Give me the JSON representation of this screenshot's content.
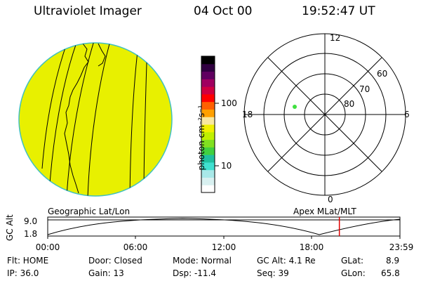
{
  "header": {
    "instrument": "Ultraviolet Imager",
    "date": "04 Oct 00",
    "time": "19:52:47 UT"
  },
  "colorbar": {
    "unit_label": "photon cm⁻²s⁻¹",
    "tick_100": "100",
    "tick_10": "10",
    "colors": [
      "#ffffff",
      "#d8f0f0",
      "#a8e8e8",
      "#40e0d0",
      "#20c0a0",
      "#40d040",
      "#80e020",
      "#c0f000",
      "#f0f000",
      "#f8e8a0",
      "#ffa000",
      "#ff6000",
      "#ff0000",
      "#d00040",
      "#a00060",
      "#600060",
      "#300040",
      "#000000"
    ]
  },
  "polar_plot": {
    "label_12": "12",
    "label_18": "18",
    "label_6": "6",
    "label_0": "0",
    "label_60": "60",
    "label_70": "70",
    "label_80": "80"
  },
  "geo_view": {
    "disk_color": "#e8f000",
    "limb_color": "#40c0c0"
  },
  "timeline": {
    "ylabel": "GC Alt",
    "y_top": "9.0",
    "y_bottom": "1.8",
    "left_title": "Geographic Lat/Lon",
    "right_title": "Apex MLat/MLT",
    "ticks": [
      "00:00",
      "06:00",
      "12:00",
      "18:00",
      "23:59"
    ],
    "marker_color": "#e00000",
    "marker_time_fraction": 0.828
  },
  "info": {
    "flt": "Flt: HOME",
    "door": "Door: Closed",
    "mode": "Mode: Normal",
    "gcalt": "GC Alt: 4.1 Re",
    "glat": "GLat:",
    "glat_val": "8.9",
    "ip": "IP: 36.0",
    "gain": "Gain: 13",
    "dsp": "Dsp:  -11.4",
    "seq": "Seq: 39",
    "glon": "GLon:",
    "glon_val": "65.8"
  }
}
